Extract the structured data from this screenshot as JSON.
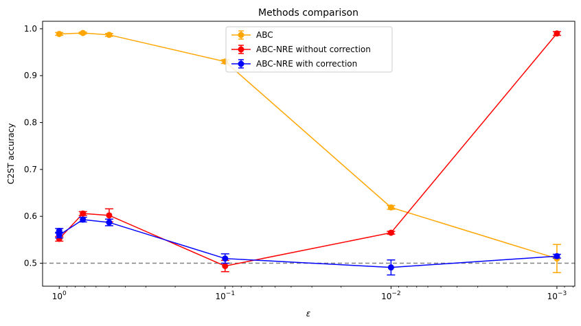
{
  "chart_data": {
    "type": "line",
    "title": "Methods comparison",
    "xlabel": "ε",
    "ylabel": "C2ST accuracy",
    "x_scale": "log",
    "x_reversed": true,
    "xlim": [
      1.26,
      0.00078
    ],
    "ylim": [
      0.451,
      1.016
    ],
    "x_ticks": [
      {
        "value": 1,
        "label": "10",
        "exp": "0"
      },
      {
        "value": 0.1,
        "label": "10",
        "exp": "−1"
      },
      {
        "value": 0.01,
        "label": "10",
        "exp": "−2"
      },
      {
        "value": 0.001,
        "label": "10",
        "exp": "−3"
      }
    ],
    "y_ticks": [
      0.5,
      0.6,
      0.7,
      0.8,
      0.9,
      1.0
    ],
    "y_tick_labels": [
      "0.5",
      "0.6",
      "0.7",
      "0.8",
      "0.9",
      "1.0"
    ],
    "reference_line": {
      "y": 0.5,
      "style": "dashed",
      "color": "#808080"
    },
    "legend_position": "top-center",
    "grid": false,
    "series": [
      {
        "name": "ABC",
        "color": "#FFA500",
        "points": [
          {
            "x": 1.0,
            "y": 0.989,
            "err": 0.003
          },
          {
            "x": 0.72,
            "y": 0.991,
            "err": 0.002
          },
          {
            "x": 0.5,
            "y": 0.987,
            "err": 0.003
          },
          {
            "x": 0.1,
            "y": 0.93,
            "err": 0.004
          },
          {
            "x": 0.01,
            "y": 0.619,
            "err": 0.004
          },
          {
            "x": 0.001,
            "y": 0.51,
            "err": 0.03
          }
        ]
      },
      {
        "name": "ABC-NRE without correction",
        "color": "#FF0000",
        "points": [
          {
            "x": 1.0,
            "y": 0.552,
            "err": 0.005
          },
          {
            "x": 0.72,
            "y": 0.606,
            "err": 0.004
          },
          {
            "x": 0.5,
            "y": 0.602,
            "err": 0.014
          },
          {
            "x": 0.1,
            "y": 0.494,
            "err": 0.012
          },
          {
            "x": 0.01,
            "y": 0.565,
            "err": 0.003
          },
          {
            "x": 0.001,
            "y": 0.99,
            "err": 0.004
          }
        ]
      },
      {
        "name": "ABC-NRE with correction",
        "color": "#0000FF",
        "points": [
          {
            "x": 1.0,
            "y": 0.569,
            "err": 0.005
          },
          {
            "x": 1.0,
            "y": 0.56,
            "err": 0.006
          },
          {
            "x": 0.72,
            "y": 0.593,
            "err": 0.005
          },
          {
            "x": 0.5,
            "y": 0.587,
            "err": 0.007
          },
          {
            "x": 0.1,
            "y": 0.51,
            "err": 0.01
          },
          {
            "x": 0.01,
            "y": 0.491,
            "err": 0.016
          },
          {
            "x": 0.001,
            "y": 0.515,
            "err": 0.004
          }
        ]
      }
    ]
  }
}
